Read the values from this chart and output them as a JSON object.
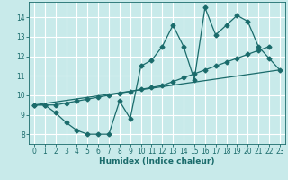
{
  "xlabel": "Humidex (Indice chaleur)",
  "bg_color": "#c8eaea",
  "grid_color": "#ffffff",
  "line_color": "#1a6b6b",
  "xlim": [
    -0.5,
    23.5
  ],
  "ylim": [
    7.5,
    14.8
  ],
  "xticks": [
    0,
    1,
    2,
    3,
    4,
    5,
    6,
    7,
    8,
    9,
    10,
    11,
    12,
    13,
    14,
    15,
    16,
    17,
    18,
    19,
    20,
    21,
    22,
    23
  ],
  "yticks": [
    8,
    9,
    10,
    11,
    12,
    13,
    14
  ],
  "series1_x": [
    0,
    1,
    2,
    3,
    4,
    5,
    6,
    7,
    8,
    9,
    10,
    11,
    12,
    13,
    14,
    15,
    16,
    17,
    18,
    19,
    20,
    21,
    22,
    23
  ],
  "series1_y": [
    9.5,
    9.5,
    9.1,
    8.6,
    8.2,
    8.0,
    8.0,
    8.0,
    9.7,
    8.8,
    11.5,
    11.8,
    12.5,
    13.6,
    12.5,
    10.8,
    14.5,
    13.1,
    13.6,
    14.1,
    13.8,
    12.5,
    11.9,
    11.3
  ],
  "series2_x": [
    0,
    1,
    2,
    3,
    4,
    5,
    6,
    7,
    8,
    9,
    10,
    11,
    12,
    13,
    14,
    15,
    16,
    17,
    18,
    19,
    20,
    21,
    22,
    23
  ],
  "series2_y": [
    9.5,
    9.5,
    9.5,
    9.6,
    9.7,
    9.8,
    9.9,
    10.0,
    10.1,
    10.2,
    10.3,
    10.4,
    10.5,
    10.7,
    10.9,
    11.1,
    11.3,
    11.5,
    11.7,
    11.9,
    12.1,
    12.3,
    12.5,
    null
  ],
  "series3_x": [
    0,
    23
  ],
  "series3_y": [
    9.5,
    11.3
  ]
}
